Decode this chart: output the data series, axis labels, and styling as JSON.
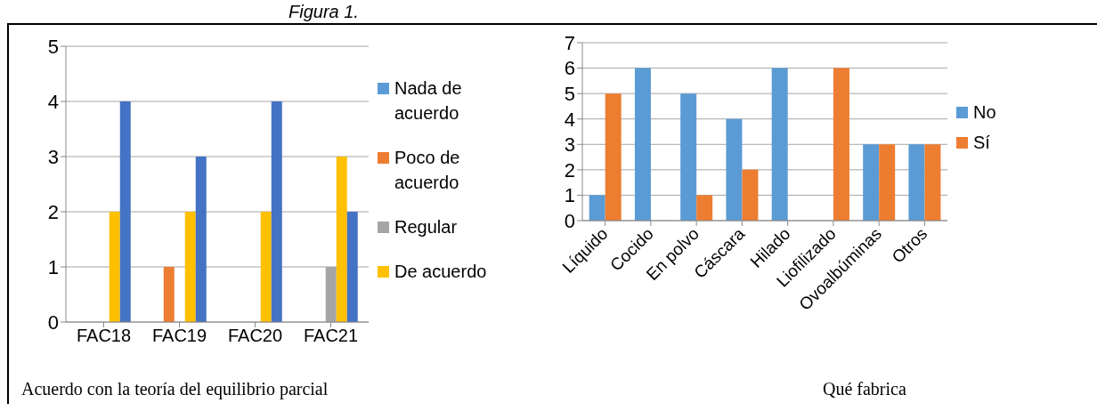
{
  "chart_data": [
    {
      "type": "bar",
      "title": "Figura 1.",
      "categories": [
        "FAC18",
        "FAC19",
        "FAC20",
        "FAC21"
      ],
      "series": [
        {
          "name": "Nada de acuerdo",
          "color": "#5b9bd5",
          "values": [
            0,
            0,
            0,
            0
          ]
        },
        {
          "name": "Poco de acuerdo",
          "color": "#ed7d31",
          "values": [
            0,
            1,
            0,
            0
          ]
        },
        {
          "name": "Regular",
          "color": "#a5a5a5",
          "values": [
            0,
            0,
            0,
            1
          ]
        },
        {
          "name": "De acuerdo",
          "color": "#ffc000",
          "values": [
            2,
            2,
            2,
            3
          ]
        },
        {
          "color": "#4472c4",
          "values": [
            4,
            3,
            4,
            2
          ]
        }
      ],
      "ylim": [
        0,
        5
      ],
      "yticks": [
        0,
        1,
        2,
        3,
        4,
        5
      ],
      "grid": "y",
      "legend": "right",
      "annotations": [
        "Acuerdo con la teoría del equilibrio parcial"
      ]
    },
    {
      "type": "bar",
      "categories": [
        "Líquido",
        "Cocido",
        "En polvo",
        "Cáscara",
        "Hilado",
        "Liofilizado",
        "Ovoalbúminas",
        "Otros"
      ],
      "series": [
        {
          "name": "No",
          "color": "#5b9bd5",
          "values": [
            1,
            6,
            5,
            4,
            6,
            0,
            3,
            3
          ]
        },
        {
          "name": "Sí",
          "color": "#ed7d31",
          "values": [
            5,
            0,
            1,
            2,
            0,
            6,
            3,
            3
          ]
        }
      ],
      "ylim": [
        0,
        7
      ],
      "yticks": [
        0,
        1,
        2,
        3,
        4,
        5,
        6,
        7
      ],
      "grid": "y",
      "legend": "right",
      "annotations": [
        "Qué fabrica"
      ]
    }
  ]
}
